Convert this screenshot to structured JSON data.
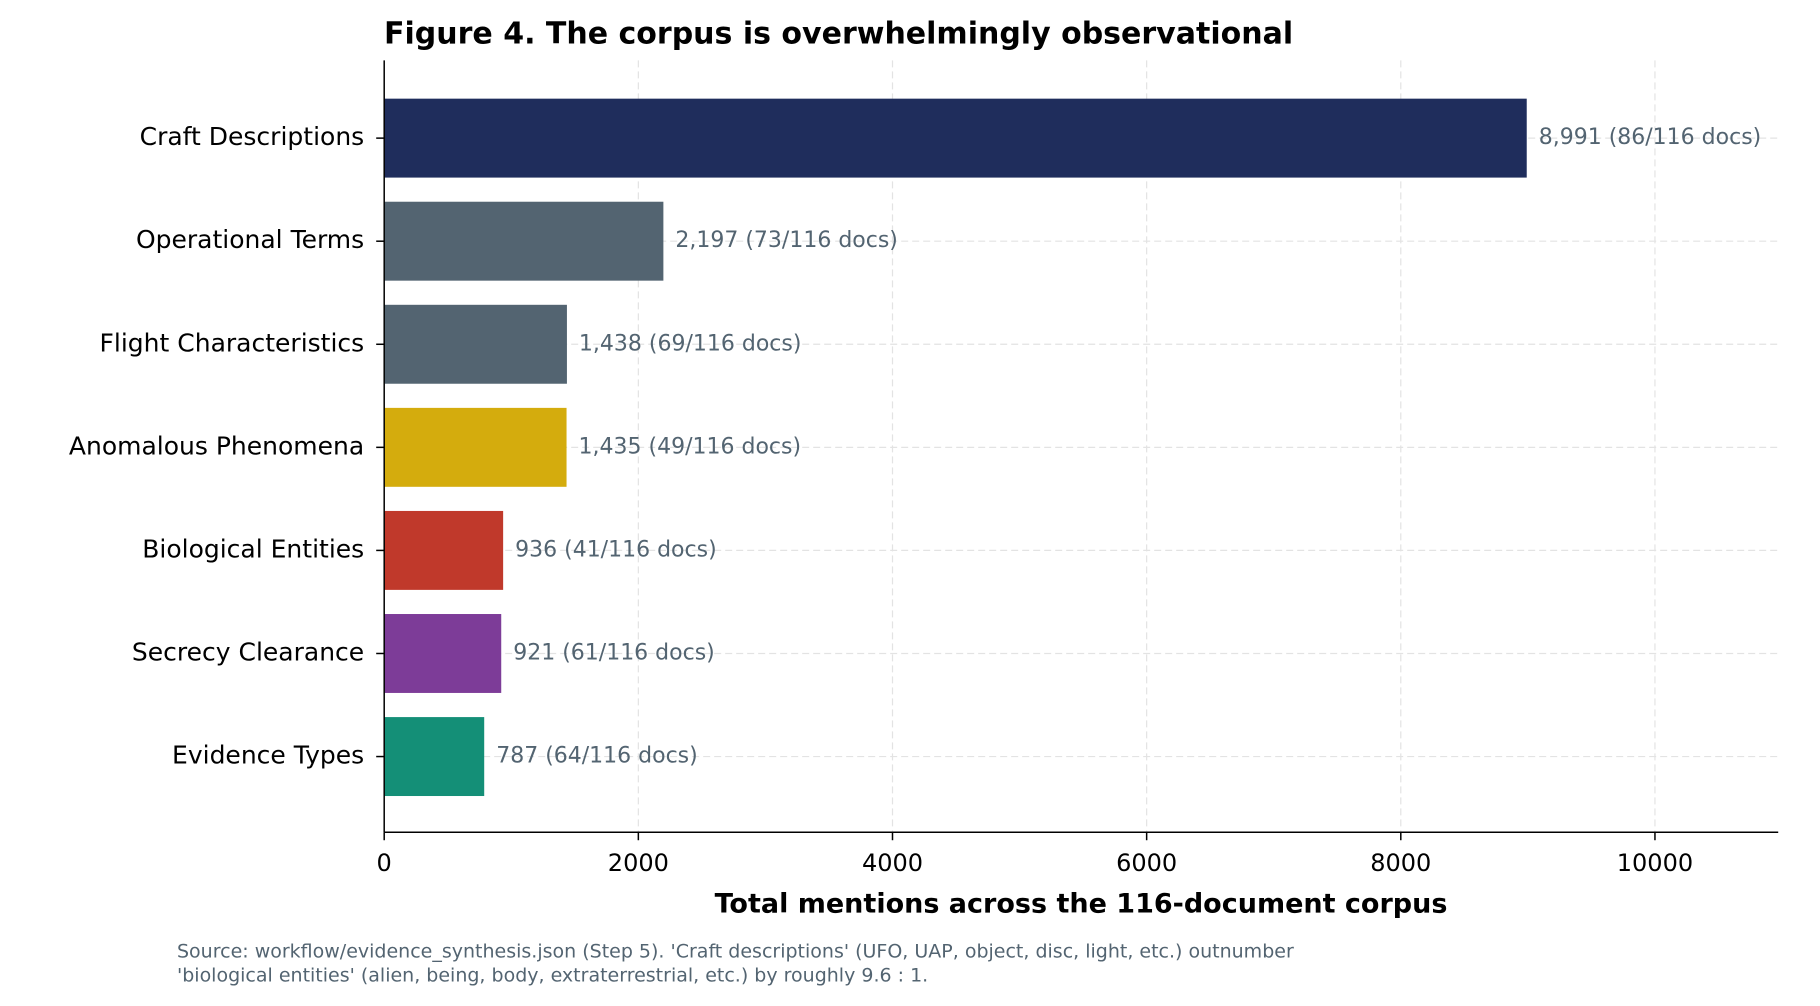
{
  "chart_data": {
    "type": "barh",
    "title": "Figure 4. The corpus is overwhelmingly observational",
    "xlabel": "Total mentions across the 116-document corpus",
    "note": [
      "Source: workflow/evidence_synthesis.json (Step 5). 'Craft descriptions' (UFO, UAP, object, disc, light, etc.) outnumber",
      "'biological entities' (alien, being, body, extraterrestrial, etc.) by roughly 9.6 : 1."
    ],
    "categories": [
      "Craft Descriptions",
      "Operational Terms",
      "Flight Characteristics",
      "Anomalous Phenomena",
      "Biological Entities",
      "Secrecy Clearance",
      "Evidence Types"
    ],
    "values": [
      8991,
      2197,
      1438,
      1435,
      936,
      921,
      787
    ],
    "value_labels": [
      "8,991  (86/116 docs)",
      "2,197  (73/116 docs)",
      "1,438  (69/116 docs)",
      "1,435  (49/116 docs)",
      "936  (41/116 docs)",
      "921  (61/116 docs)",
      "787  (64/116 docs)"
    ],
    "colors": [
      "#1f2d5c",
      "#536471",
      "#536471",
      "#d4ac0d",
      "#c0392b",
      "#7d3c98",
      "#148f77"
    ],
    "xlim": [
      0,
      10970
    ],
    "xticks": [
      0,
      2000,
      4000,
      6000,
      8000,
      10000
    ],
    "grid": true
  }
}
